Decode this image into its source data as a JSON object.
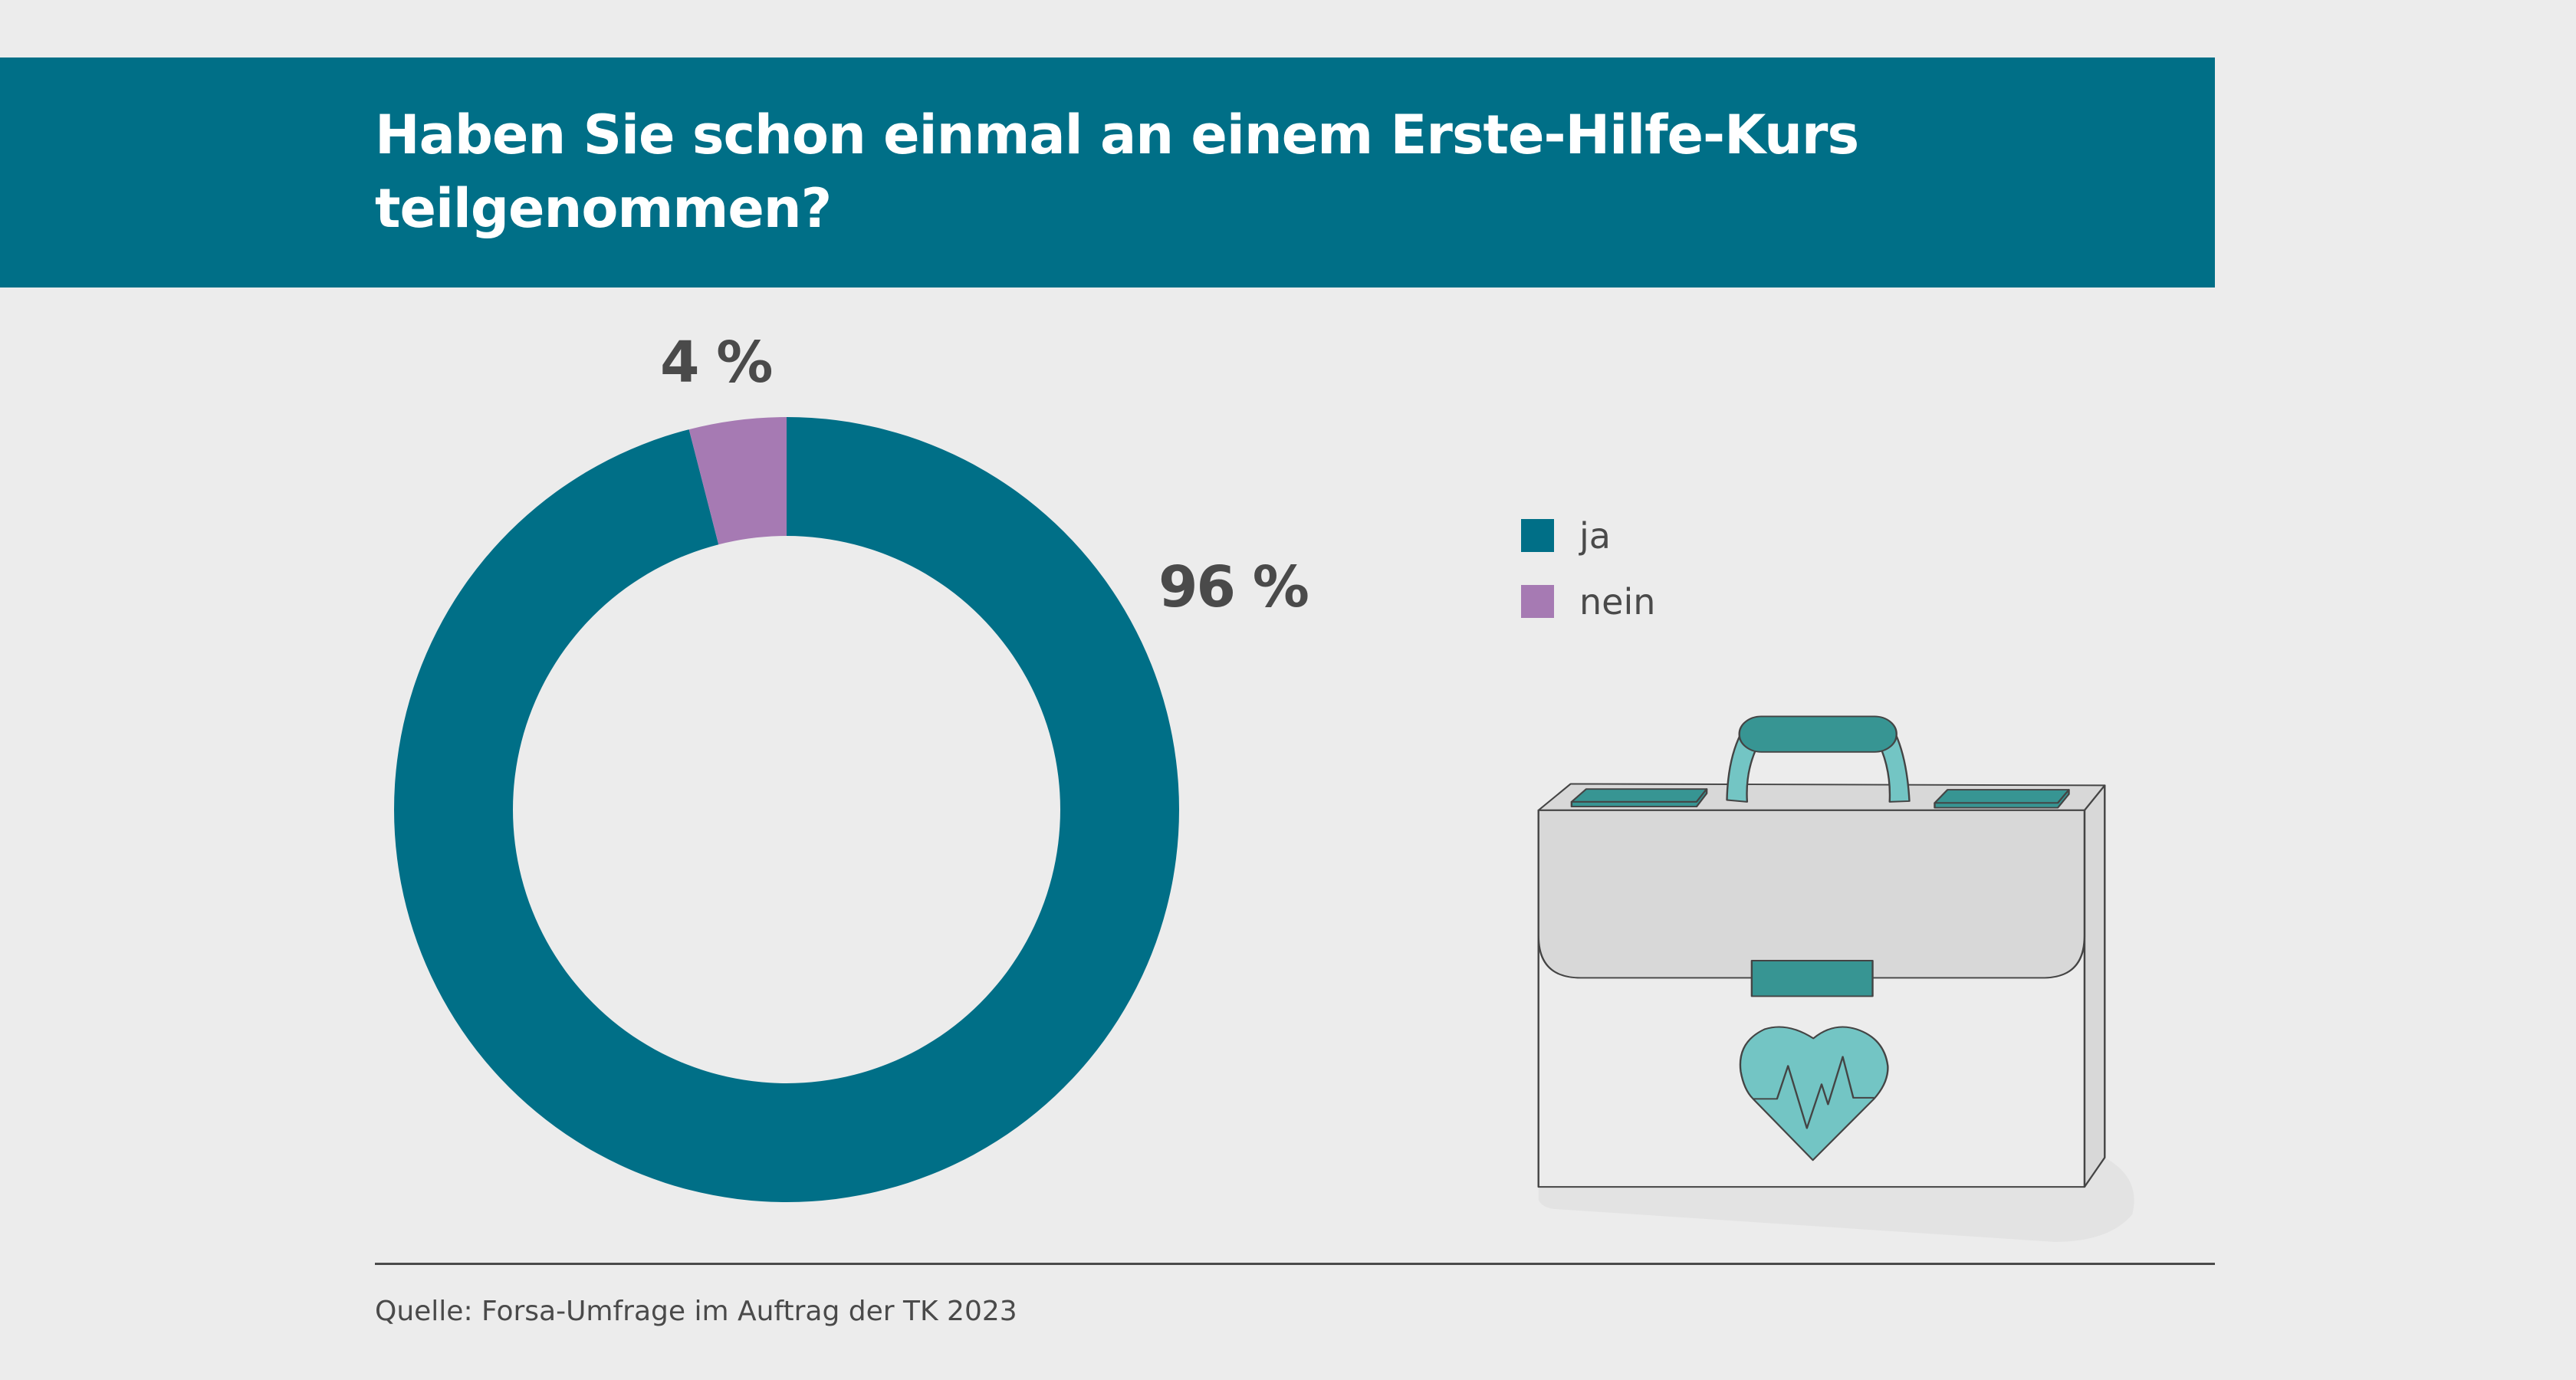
{
  "header": {
    "title": "Haben Sie schon einmal an einem Erste-Hilfe-Kurs teilgenommen?"
  },
  "chart_data": {
    "type": "pie",
    "variant": "donut",
    "title": "Haben Sie schon einmal an einem Erste-Hilfe-Kurs teilgenommen?",
    "categories": [
      "ja",
      "nein"
    ],
    "values": [
      96,
      4
    ],
    "unit": "%",
    "colors": [
      "#006f87",
      "#a67ab3"
    ],
    "data_labels": [
      "96 %",
      "4 %"
    ],
    "legend": {
      "placement": "right",
      "entries": [
        "ja",
        "nein"
      ]
    }
  },
  "illustration": {
    "icon": "first-aid-briefcase-heart-icon"
  },
  "footer": {
    "source": "Quelle: Forsa-Umfrage im Auftrag der TK 2023"
  }
}
